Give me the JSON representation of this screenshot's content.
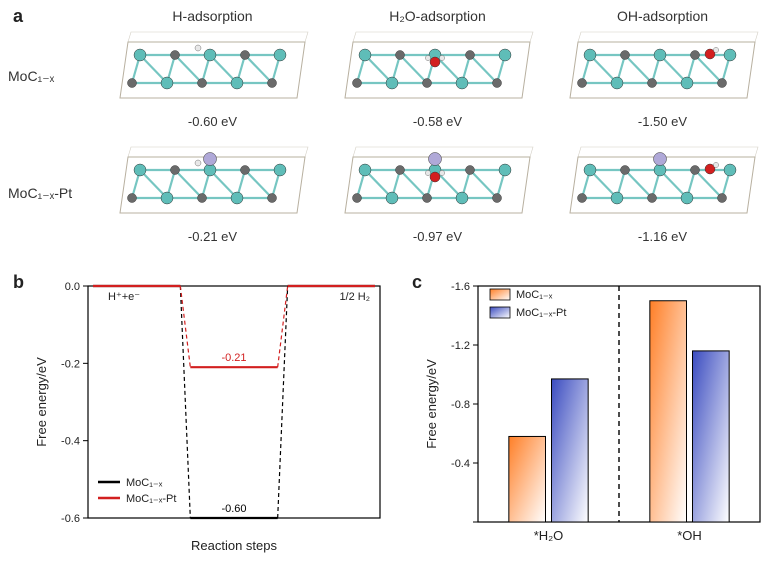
{
  "panelA": {
    "label": "a",
    "columns": [
      "H-adsorption",
      "H₂O-adsorption",
      "OH-adsorption"
    ],
    "rows": [
      "MoC₁₋ₓ",
      "MoC₁₋ₓ-Pt"
    ],
    "energies_row1": [
      "-0.60 eV",
      "-0.58 eV",
      "-1.50 eV"
    ],
    "energies_row2": [
      "-0.21 eV",
      "-0.97 eV",
      "-1.16 eV"
    ],
    "colors": {
      "mo": "#5fbdb8",
      "c": "#6a6a6a",
      "o": "#d21f1f",
      "h": "#e8e8e8",
      "pt": "#b0a9d8",
      "box": "#b8b0a0"
    }
  },
  "panelB": {
    "label": "b",
    "ylabel": "Free energy/eV",
    "xlabel": "Reaction steps",
    "left_label": "H⁺+e⁻",
    "right_label": "1/2 H₂",
    "series": [
      {
        "name": "MoC₁₋ₓ",
        "color": "#000000",
        "mid_y": -0.6,
        "mid_label": "-0.60"
      },
      {
        "name": "MoC₁₋ₓ-Pt",
        "color": "#d21f1f",
        "mid_y": -0.21,
        "mid_label": "-0.21"
      }
    ],
    "ylim": [
      -0.6,
      0.0
    ],
    "ytick_step": 0.2,
    "yticks": [
      "0.0",
      "-0.2",
      "-0.4",
      "-0.6"
    ],
    "plot_bg": "#ffffff",
    "axis_color": "#000000"
  },
  "panelC": {
    "label": "c",
    "ylabel": "Free energy/eV",
    "categories": [
      "*H₂O",
      "*OH"
    ],
    "series": [
      {
        "name": "MoC₁₋ₓ",
        "color1": "#ff7f27",
        "color2": "#ffffff",
        "values": [
          0.58,
          1.5
        ]
      },
      {
        "name": "MoC₁₋ₓ-Pt",
        "color1": "#3b4cc0",
        "color2": "#ffffff",
        "values": [
          0.97,
          1.16
        ]
      }
    ],
    "ylim": [
      0,
      1.6
    ],
    "yticks": [
      "",
      "-0.4",
      "-0.8",
      "-1.2",
      "-1.6"
    ],
    "ytick_vals": [
      0,
      0.4,
      0.8,
      1.2,
      1.6
    ],
    "bar_width": 0.35,
    "gap_line_color": "#000000",
    "plot_bg": "#ffffff",
    "axis_color": "#000000",
    "legend_swatch_stroke": "#000000"
  }
}
